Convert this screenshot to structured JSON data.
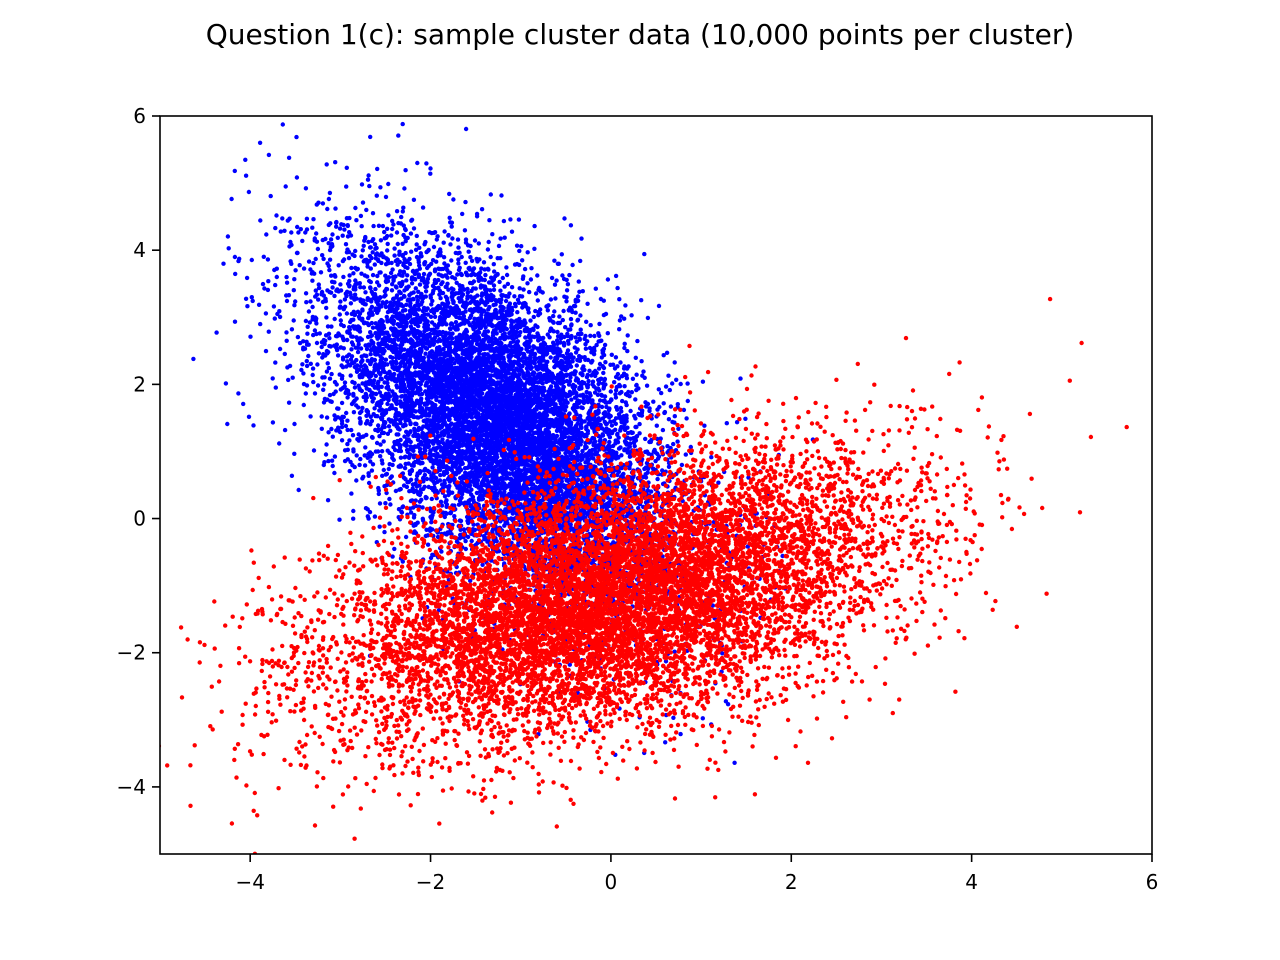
{
  "chart_data": {
    "type": "scatter",
    "title": "Question 1(c): sample cluster data (10,000 points per cluster)",
    "xlabel": "",
    "ylabel": "",
    "xlim": [
      -5,
      6
    ],
    "ylim": [
      -5,
      6
    ],
    "xticks": [
      -4,
      -2,
      0,
      2,
      4,
      6
    ],
    "yticks": [
      -4,
      -2,
      0,
      2,
      4,
      6
    ],
    "xtick_labels": [
      "−4",
      "−2",
      "0",
      "2",
      "4",
      "6"
    ],
    "ytick_labels": [
      "−4",
      "−2",
      "0",
      "2",
      "4",
      "6"
    ],
    "grid": false,
    "legend": "none",
    "series": [
      {
        "color": "#0000ff",
        "count": 10000,
        "distribution": {
          "mean": [
            -1.2,
            1.4
          ],
          "std_x": 0.95,
          "std_y": 1.3,
          "correlation": -0.55
        }
      },
      {
        "color": "#ff0000",
        "count": 10000,
        "distribution": {
          "mean": [
            0.0,
            -1.2
          ],
          "std_x": 1.55,
          "std_y": 1.05,
          "correlation": 0.45
        }
      }
    ]
  }
}
